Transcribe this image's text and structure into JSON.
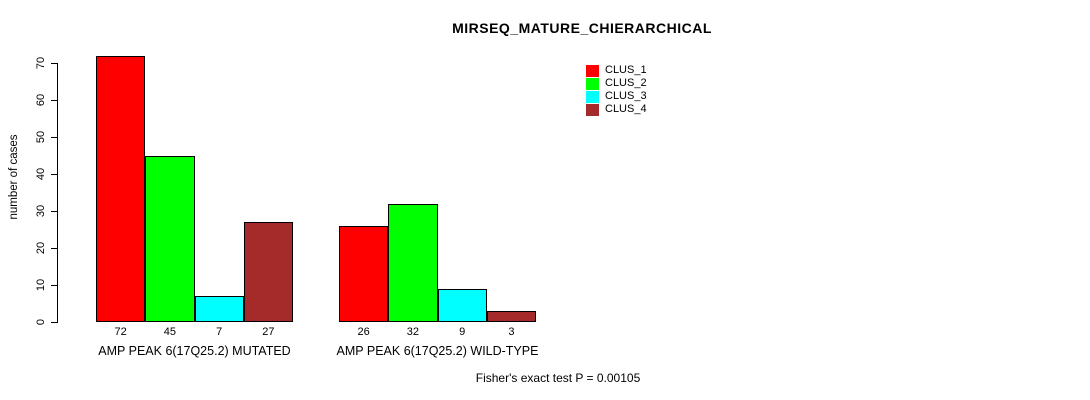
{
  "chart_data": {
    "type": "bar",
    "title": "MIRSEQ_MATURE_CHIERARCHICAL",
    "xlabel": "",
    "ylabel": "number of cases",
    "ylim": [
      0,
      70
    ],
    "yticks": [
      0,
      10,
      20,
      30,
      40,
      50,
      60,
      70
    ],
    "grid": false,
    "legend_position": "top-right",
    "categories": [
      "AMP PEAK 6(17Q25.2) MUTATED",
      "AMP PEAK 6(17Q25.2) WILD-TYPE"
    ],
    "series": [
      {
        "name": "CLUS_1",
        "color": "#ff0000",
        "values": [
          72,
          26
        ]
      },
      {
        "name": "CLUS_2",
        "color": "#00ff00",
        "values": [
          45,
          32
        ]
      },
      {
        "name": "CLUS_3",
        "color": "#00ffff",
        "values": [
          7,
          9
        ]
      },
      {
        "name": "CLUS_4",
        "color": "#a52a2a",
        "values": [
          27,
          3
        ]
      }
    ],
    "annotation": "Fisher's exact test P = 0.00105"
  }
}
